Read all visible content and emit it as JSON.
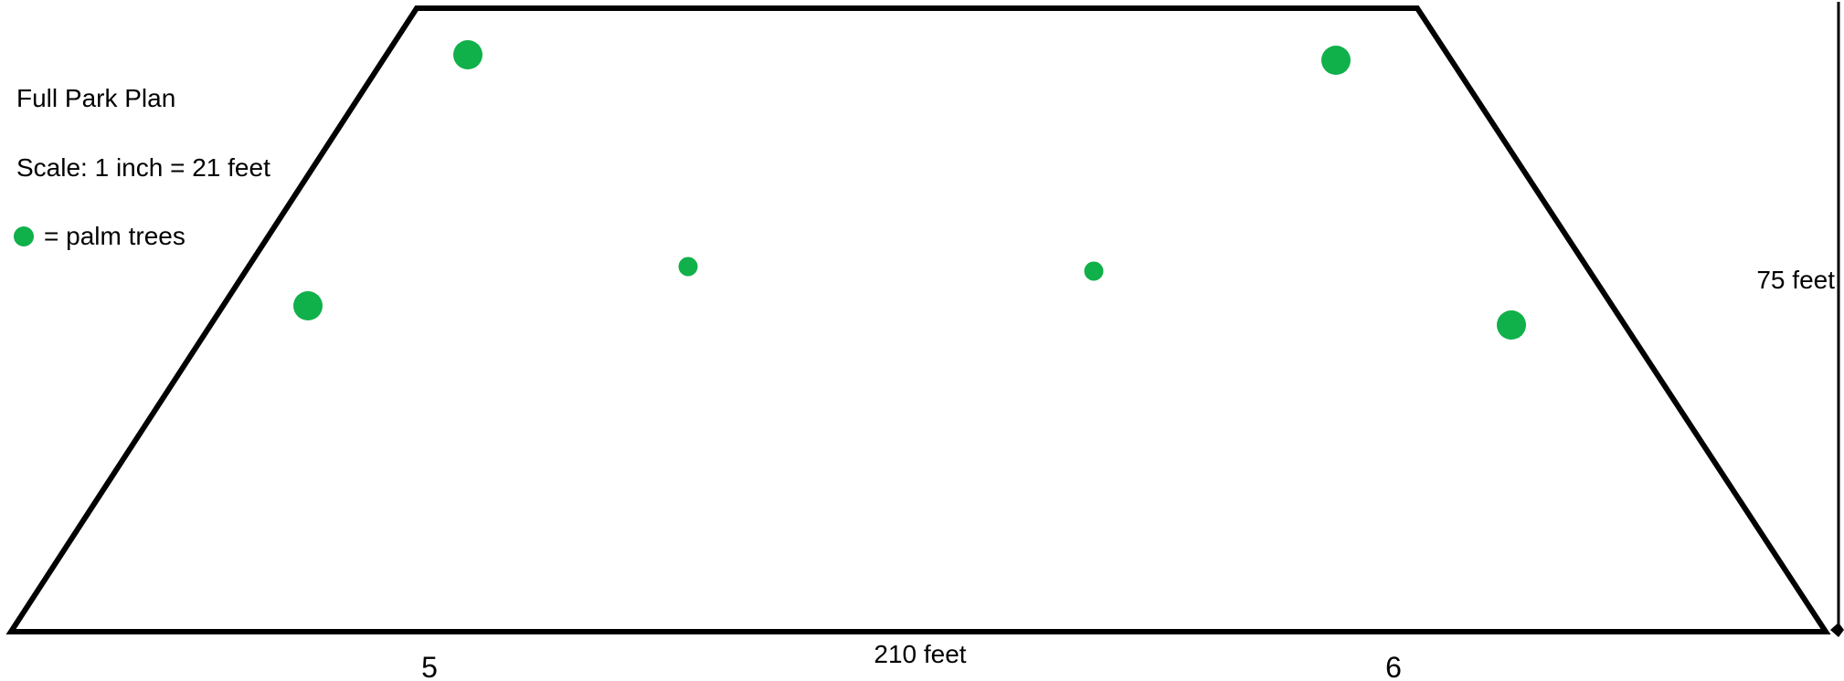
{
  "legend": {
    "title": "Full Park Plan",
    "scale": "Scale: 1 inch = 21 feet",
    "tree_label": "= palm trees"
  },
  "dimensions": {
    "height_label": "75 feet",
    "base_label": "210 feet"
  },
  "corner_labels": {
    "left": "5",
    "right": "6"
  },
  "palm_tree_count": 6,
  "colors": {
    "outline": "#000000",
    "palm_tree": "#10b04a"
  },
  "icons": {
    "palm_tree": "filled-circle",
    "dimension_arrow": "double-headed-arrow"
  }
}
